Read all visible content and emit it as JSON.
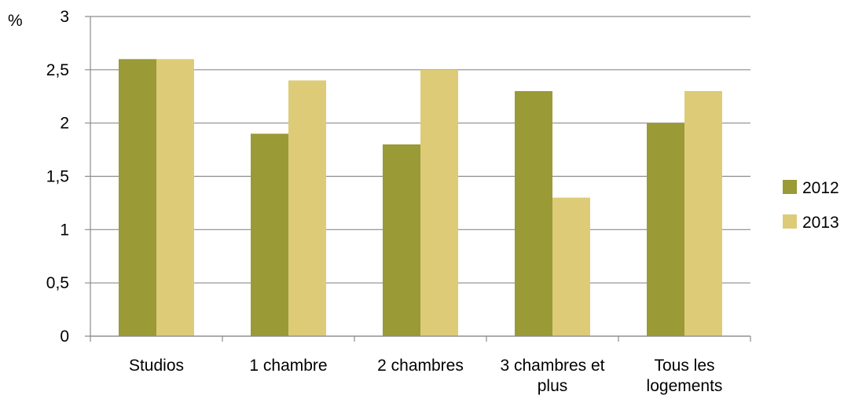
{
  "chart_data": {
    "type": "bar",
    "unit_label": "%",
    "categories": [
      [
        "Studios"
      ],
      [
        "1 chambre"
      ],
      [
        "2 chambres"
      ],
      [
        "3 chambres et",
        "plus"
      ],
      [
        "Tous les",
        "logements"
      ]
    ],
    "series": [
      {
        "name": "2012",
        "color": "#9a9a36",
        "values": [
          2.6,
          1.9,
          1.8,
          2.3,
          2.0
        ]
      },
      {
        "name": "2013",
        "color": "#ddcb78",
        "values": [
          2.6,
          2.4,
          2.5,
          1.3,
          2.3
        ]
      }
    ],
    "ylim": [
      0,
      3
    ],
    "yticks": [
      {
        "value": 0,
        "label": "0"
      },
      {
        "value": 0.5,
        "label": "0,5"
      },
      {
        "value": 1,
        "label": "1"
      },
      {
        "value": 1.5,
        "label": "1,5"
      },
      {
        "value": 2,
        "label": "2"
      },
      {
        "value": 2.5,
        "label": "2,5"
      },
      {
        "value": 3,
        "label": "3"
      }
    ],
    "grid": true,
    "legend_position": "right",
    "gridline_color": "#8c8c8c"
  }
}
